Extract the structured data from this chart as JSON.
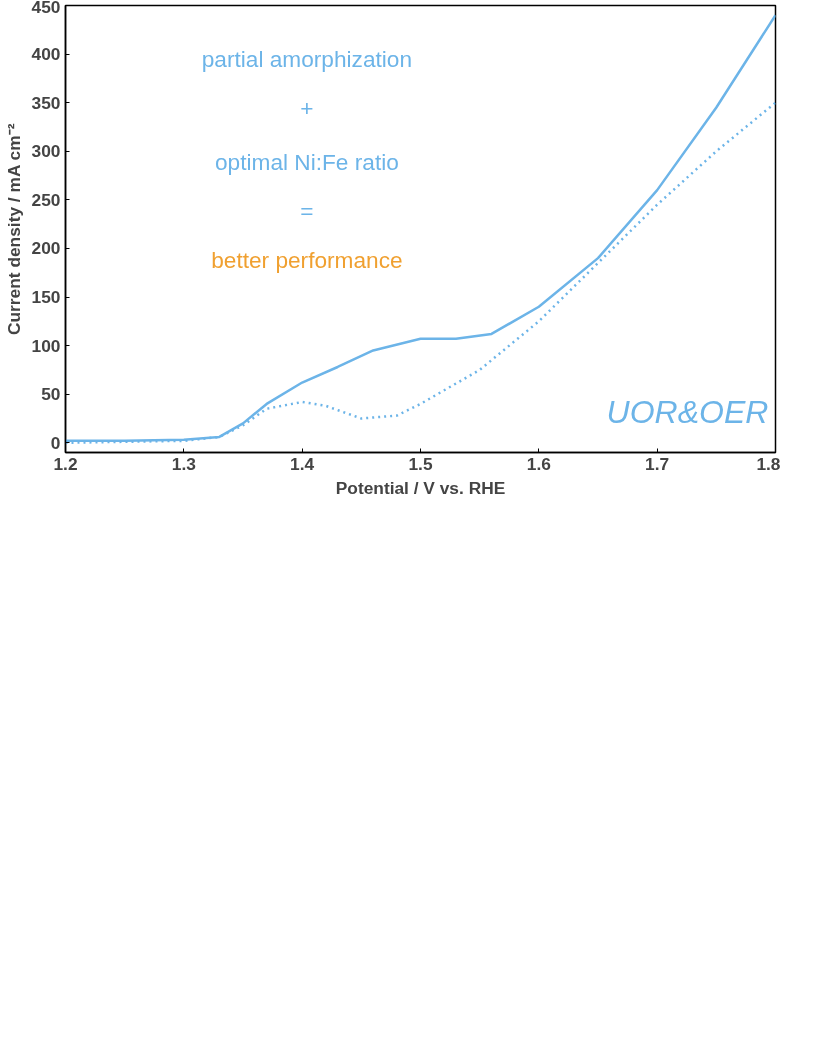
{
  "chart_data": {
    "type": "line",
    "xlabel": "Potential / V vs. RHE",
    "ylabel": "Current density / mA cm⁻²",
    "xlim": [
      1.2,
      1.8
    ],
    "ylim": [
      -10,
      450
    ],
    "xticks": [
      1.2,
      1.3,
      1.4,
      1.5,
      1.6,
      1.7,
      1.8
    ],
    "yticks": [
      0,
      50,
      100,
      150,
      200,
      250,
      300,
      350,
      400,
      450
    ],
    "grid": false,
    "annotations": [
      "partial amorphization",
      "+",
      "optimal Ni:Fe ratio",
      "=",
      "better performance",
      "UOR&OER"
    ],
    "series": [
      {
        "color": "#6cb4e8",
        "line_style": "solid",
        "x": [
          1.2,
          1.25,
          1.3,
          1.33,
          1.35,
          1.37,
          1.4,
          1.43,
          1.46,
          1.5,
          1.53,
          1.56,
          1.6,
          1.65,
          1.7,
          1.75,
          1.8
        ],
        "values": [
          2,
          2,
          3,
          6,
          20,
          40,
          62,
          78,
          95,
          107,
          107,
          112,
          140,
          190,
          260,
          345,
          440
        ]
      },
      {
        "color": "#6cb4e8",
        "line_style": "dotted",
        "x": [
          1.2,
          1.25,
          1.3,
          1.33,
          1.35,
          1.37,
          1.4,
          1.42,
          1.45,
          1.48,
          1.5,
          1.55,
          1.6,
          1.65,
          1.7,
          1.75,
          1.8
        ],
        "values": [
          0,
          1,
          2,
          6,
          18,
          35,
          42,
          38,
          25,
          28,
          40,
          75,
          125,
          185,
          245,
          300,
          350
        ]
      }
    ]
  }
}
